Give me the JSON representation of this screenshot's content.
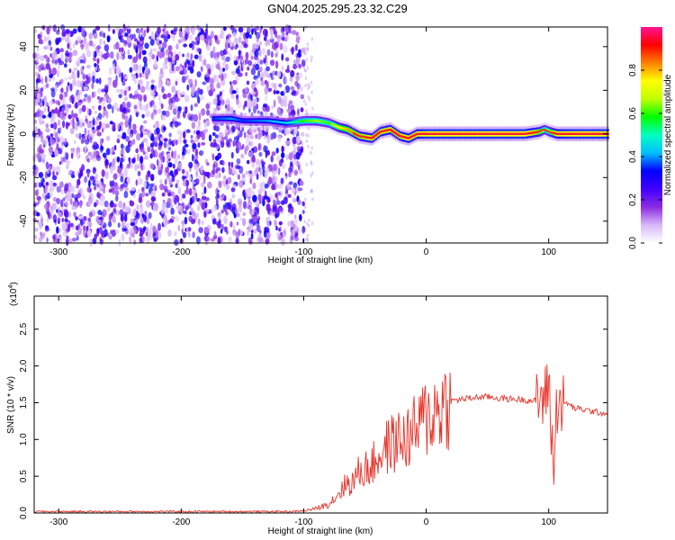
{
  "figure": {
    "title": "GN04.2025.295.23.32.C29"
  },
  "chart_data": [
    {
      "type": "heatmap",
      "title": "GN04.2025.295.23.32.C29",
      "xlabel": "Height of straight line (km)",
      "ylabel": "Frequency (Hz)",
      "xlim": [
        -320,
        148
      ],
      "ylim": [
        -50,
        49
      ],
      "xticks": [
        -300,
        -200,
        -100,
        0,
        100
      ],
      "xtick_labels": [
        "-300",
        "-200",
        "-100",
        "0",
        "100"
      ],
      "yticks": [
        40,
        20,
        0,
        -20,
        -40
      ],
      "ytick_labels": [
        "40",
        "20",
        "0",
        "-20",
        "-40"
      ],
      "colorbar": {
        "label": "Normalized spectral amplitude",
        "range": [
          0,
          1
        ],
        "ticks": [
          0.0,
          0.2,
          0.4,
          0.6,
          0.8
        ],
        "tick_labels": [
          "0.0",
          "0.2",
          "0.4",
          "0.6",
          "0.8"
        ],
        "colors": [
          "#ffffff",
          "#d8b8f8",
          "#8a2be2",
          "#4000ff",
          "#0000ff",
          "#00bfff",
          "#00ffc0",
          "#00ff00",
          "#c0ff00",
          "#ffff00",
          "#ff8000",
          "#ff0000",
          "#ff1493"
        ]
      },
      "noise_region": {
        "x": [
          -320,
          -100
        ],
        "y": [
          -50,
          49
        ]
      },
      "ridge": {
        "x": [
          -175,
          -160,
          -150,
          -130,
          -115,
          -100,
          -90,
          -80,
          -72,
          -65,
          -55,
          -45,
          -38,
          -30,
          -22,
          -15,
          -8,
          0,
          20,
          50,
          80,
          92,
          96,
          100,
          106,
          120,
          148
        ],
        "freq": [
          7,
          7,
          6,
          6,
          5,
          6,
          6,
          5,
          3,
          2,
          -1,
          -2,
          1,
          2,
          -1,
          -2,
          0,
          0,
          0,
          0,
          0,
          1,
          2,
          1,
          0,
          0,
          0
        ],
        "amplitude": [
          0.35,
          0.4,
          0.35,
          0.4,
          0.45,
          0.6,
          0.65,
          0.6,
          0.75,
          0.8,
          0.85,
          0.9,
          0.9,
          0.9,
          0.9,
          0.95,
          0.95,
          1.0,
          1.0,
          1.0,
          1.0,
          0.8,
          0.6,
          0.7,
          0.95,
          1.0,
          1.0
        ]
      }
    },
    {
      "type": "line",
      "xlabel": "Height of straight line (km)",
      "ylabel": "SNR (10 * v/v)",
      "exponent_label": "(x10",
      "exponent_sup": "4",
      "exponent_close": ")",
      "xlim": [
        -320,
        148
      ],
      "ylim": [
        0,
        2.95
      ],
      "xticks": [
        -300,
        -200,
        -100,
        0,
        100
      ],
      "xtick_labels": [
        "-300",
        "-200",
        "-100",
        "0",
        "100"
      ],
      "yticks": [
        0.0,
        0.5,
        1.0,
        1.5,
        2.0,
        2.5
      ],
      "ytick_labels": [
        "0.0",
        "0.5",
        "1.0",
        "1.5",
        "2.0",
        "2.5"
      ],
      "color": "#e8332a",
      "series": [
        {
          "x": [
            -320,
            -300,
            -250,
            -200,
            -150,
            -110,
            -100,
            -90,
            -80,
            -75,
            -70,
            -65,
            -60,
            -55,
            -50,
            -45,
            -40,
            -35,
            -30,
            -25,
            -20,
            -15,
            -10,
            -5,
            0,
            5,
            10,
            15,
            20,
            30,
            40,
            50,
            60,
            70,
            80,
            90,
            95,
            98,
            100,
            102,
            104,
            106,
            108,
            110,
            115,
            120,
            130,
            140,
            148
          ],
          "y": [
            0.02,
            0.02,
            0.02,
            0.02,
            0.02,
            0.02,
            0.03,
            0.06,
            0.12,
            0.2,
            0.3,
            0.4,
            0.42,
            0.55,
            0.6,
            0.62,
            0.75,
            0.85,
            0.92,
            0.97,
            1.0,
            1.02,
            1.1,
            1.2,
            1.3,
            1.35,
            1.42,
            1.48,
            1.52,
            1.55,
            1.57,
            1.58,
            1.56,
            1.55,
            1.54,
            1.52,
            1.55,
            1.6,
            1.85,
            1.2,
            0.5,
            1.3,
            1.7,
            1.45,
            1.5,
            1.43,
            1.4,
            1.37,
            1.35
          ]
        }
      ]
    }
  ]
}
